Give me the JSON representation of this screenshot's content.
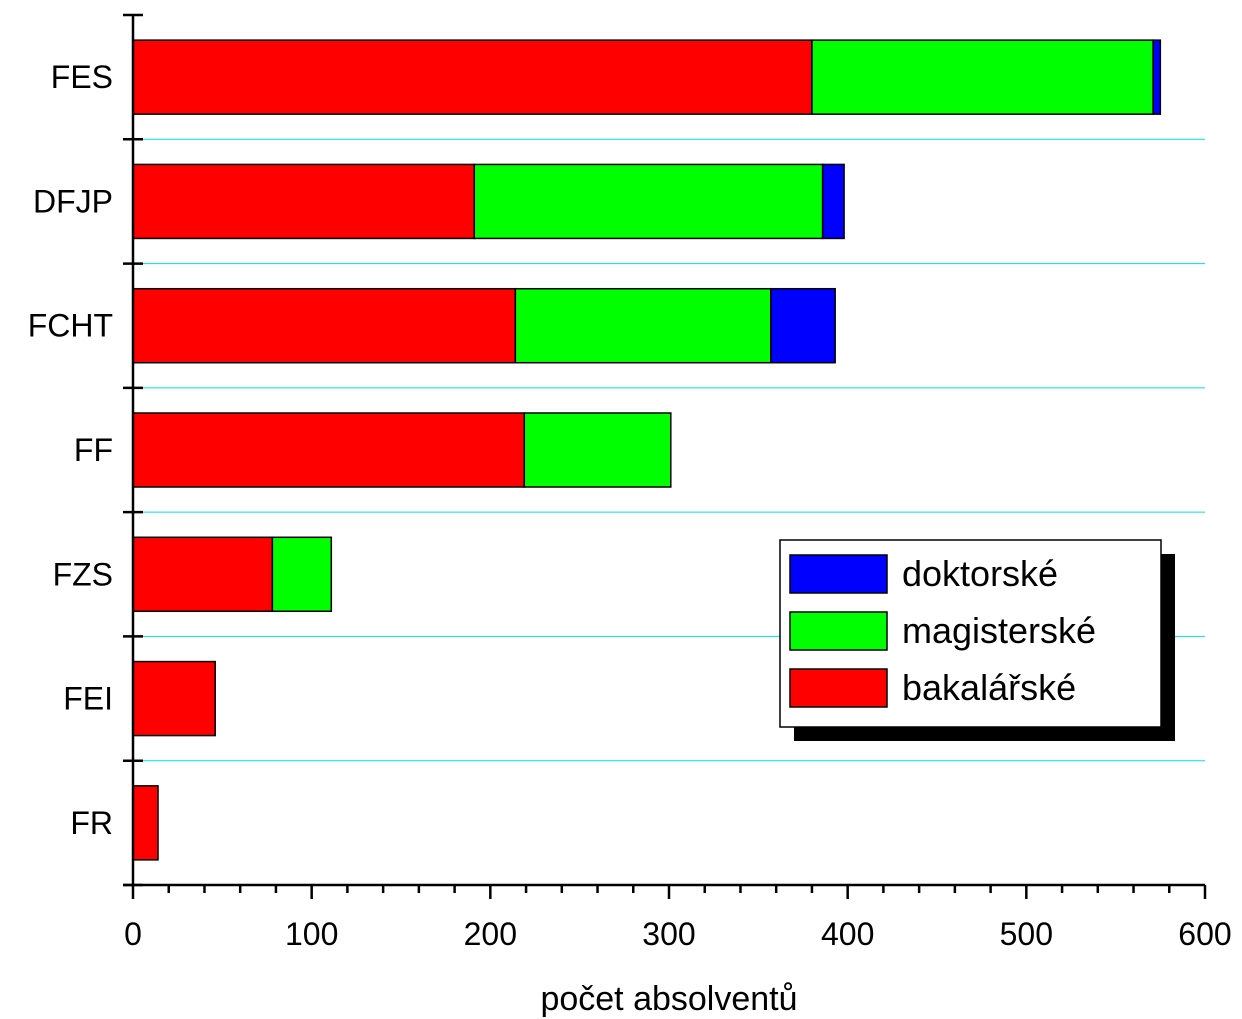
{
  "chart_data": {
    "type": "bar",
    "orientation": "horizontal",
    "stacked": true,
    "categories": [
      "FES",
      "DFJP",
      "FCHT",
      "FF",
      "FZS",
      "FEI",
      "FR"
    ],
    "series": [
      {
        "name": "bakalářské",
        "color": "#ff0000",
        "values": [
          380,
          191,
          214,
          219,
          78,
          46,
          14
        ]
      },
      {
        "name": "magisterské",
        "color": "#00ff00",
        "values": [
          191,
          195,
          143,
          82,
          33,
          0,
          0
        ]
      },
      {
        "name": "doktorské",
        "color": "#0000ff",
        "values": [
          4,
          12,
          36,
          0,
          0,
          0,
          0
        ]
      }
    ],
    "legend_order": [
      "doktorské",
      "magisterské",
      "bakalářské"
    ],
    "legend_position": "right",
    "xlabel": "počet absolventů",
    "ylabel": "",
    "xlim": [
      0,
      600
    ],
    "xticks": [
      "0",
      "100",
      "200",
      "300",
      "400",
      "500",
      "600"
    ],
    "grid": "horizontal separators between categories",
    "grid_color": "#00e0e0"
  }
}
